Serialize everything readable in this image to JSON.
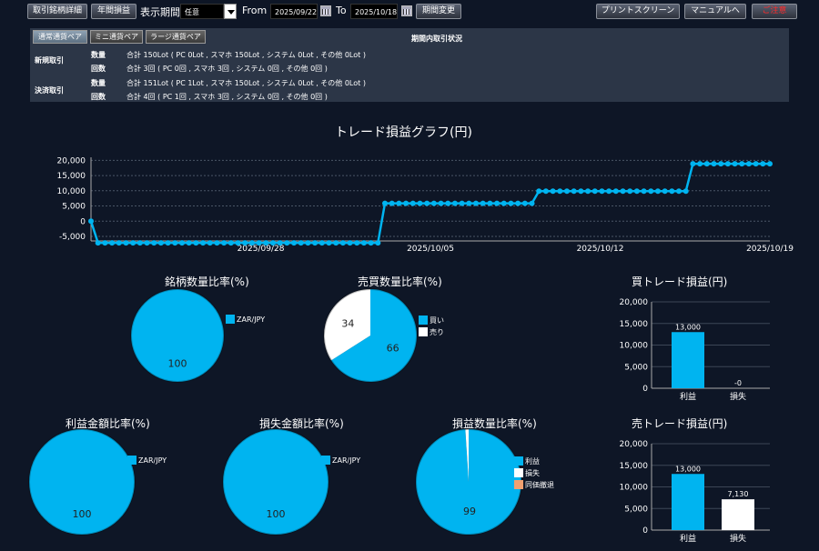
{
  "toolbar": {
    "detail_button": "取引銘柄詳細",
    "annual_button": "年間損益",
    "period_label": "表示期間",
    "period_select": "任意",
    "from_label": "From",
    "from_date": "2025/09/22",
    "to_label": "To",
    "to_date": "2025/10/18",
    "change_period_button": "期間変更",
    "print_button": "プリントスクリーン",
    "manual_button": "マニュアルへ",
    "close_button": "ご注意"
  },
  "summary": {
    "tabs": [
      "通常通貨ペア",
      "ミニ通貨ペア",
      "ラージ通貨ペア"
    ],
    "header": "期間内取引状況",
    "new_label": "新規取引",
    "settle_label": "決済取引",
    "qty_label": "数量",
    "count_label": "回数",
    "new_qty": "合計 150Lot ( PC 0Lot , スマホ 150Lot , システム 0Lot , その他 0Lot )",
    "new_count": "合計 3回 ( PC 0回 , スマホ 3回 , システム 0回 , その他 0回 )",
    "settle_qty": "合計 151Lot ( PC 1Lot , スマホ 150Lot , システム 0Lot , その他 0Lot )",
    "settle_count": "合計 4回 ( PC 1回 , スマホ 3回 , システム 0回 , その他 0回 )"
  },
  "colors": {
    "accent": "#00b4f0",
    "background": "#0e1626",
    "panel": "#2c3647",
    "loss": "#ffffff",
    "even": "#f0a070"
  },
  "chart_data": [
    {
      "type": "line",
      "title": "トレード損益グラフ(円)",
      "yticks": [
        "20,000",
        "15,000",
        "10,000",
        "5,000",
        "0",
        "-5,000"
      ],
      "ylim": [
        -6500,
        21000
      ],
      "xticks": [
        "2025/09/28",
        "2025/10/05",
        "2025/10/12",
        "2025/10/19"
      ],
      "xtick_index": [
        7,
        14,
        21,
        28
      ],
      "x_range": [
        0,
        28
      ],
      "values": [
        0,
        -7130,
        -7130,
        -7130,
        -7130,
        -7130,
        -7130,
        -7130,
        -7130,
        -7130,
        -7130,
        -7130,
        -7130,
        -7130,
        -7130,
        -7130,
        -7130,
        -7130,
        -7130,
        -7130,
        -7130,
        -7130,
        -7130,
        -7130,
        -7130,
        -7130,
        -7130,
        -7130,
        -7130,
        -7130,
        -7130,
        -7130,
        -7130,
        -7130,
        -7130,
        -7130,
        -7130,
        -7130,
        -7130,
        -7130,
        -7130,
        -7130,
        5870,
        5870,
        5870,
        5870,
        5870,
        5870,
        5870,
        5870,
        5870,
        5870,
        5870,
        5870,
        5870,
        5870,
        5870,
        5870,
        5870,
        5870,
        5870,
        5870,
        5870,
        5870,
        9870,
        9870,
        9870,
        9870,
        9870,
        9870,
        9870,
        9870,
        9870,
        9870,
        9870,
        9870,
        9870,
        9870,
        9870,
        9870,
        9870,
        9870,
        9870,
        9870,
        9870,
        9870,
        18870,
        18870,
        18870,
        18870,
        18870,
        18870,
        18870,
        18870,
        18870,
        18870,
        18870,
        18870
      ],
      "grid": true
    },
    {
      "type": "pie",
      "title": "銘柄数量比率(%)",
      "slices": [
        {
          "label": "ZAR/JPY",
          "value": 100,
          "color": "#00b4f0"
        }
      ]
    },
    {
      "type": "pie",
      "title": "売買数量比率(%)",
      "slices": [
        {
          "label": "買い",
          "value": 66,
          "color": "#00b4f0"
        },
        {
          "label": "売り",
          "value": 34,
          "color": "#ffffff"
        }
      ]
    },
    {
      "type": "pie",
      "title": "利益金額比率(%)",
      "slices": [
        {
          "label": "ZAR/JPY",
          "value": 100,
          "color": "#00b4f0"
        }
      ]
    },
    {
      "type": "pie",
      "title": "損失金額比率(%)",
      "slices": [
        {
          "label": "ZAR/JPY",
          "value": 100,
          "color": "#00b4f0"
        }
      ]
    },
    {
      "type": "pie",
      "title": "損益数量比率(%)",
      "slices": [
        {
          "label": "利益",
          "value": 99,
          "color": "#00b4f0"
        },
        {
          "label": "損失",
          "value": 1,
          "color": "#ffffff"
        },
        {
          "label": "同価撤退",
          "value": 0,
          "color": "#f0a070"
        }
      ]
    },
    {
      "type": "bar",
      "title": "買トレード損益(円)",
      "categories": [
        "利益",
        "損失"
      ],
      "values": [
        13000,
        0
      ],
      "labels": [
        "13,000",
        "-0"
      ],
      "yticks": [
        "20,000",
        "15,000",
        "10,000",
        "5,000",
        "0"
      ],
      "ylim": [
        0,
        20000
      ]
    },
    {
      "type": "bar",
      "title": "売トレード損益(円)",
      "categories": [
        "利益",
        "損失"
      ],
      "values": [
        13000,
        7130
      ],
      "labels": [
        "13,000",
        "7,130"
      ],
      "yticks": [
        "20,000",
        "15,000",
        "10,000",
        "5,000",
        "0"
      ],
      "ylim": [
        0,
        20000
      ]
    }
  ]
}
